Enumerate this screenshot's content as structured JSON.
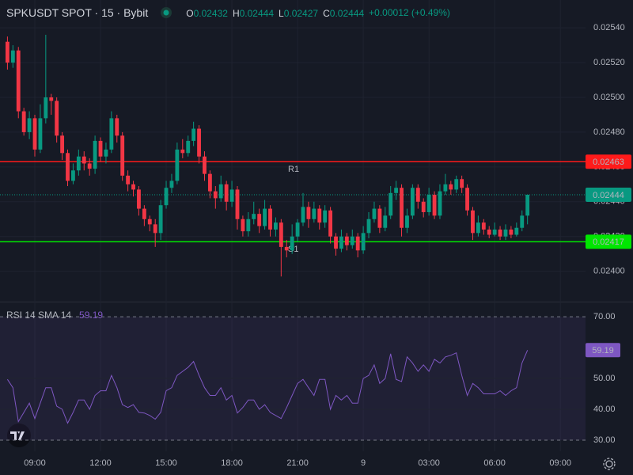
{
  "header": {
    "title": "SPKUSDT SPOT · 15 · Bybit",
    "ohlc": [
      {
        "label": "O",
        "value": 0.02432
      },
      {
        "label": "H",
        "value": 0.02444
      },
      {
        "label": "L",
        "value": 0.02427
      },
      {
        "label": "C",
        "value": 0.02444
      }
    ],
    "change": "+0.00012 (+0.49%)"
  },
  "chart_data": [
    {
      "type": "candlestick",
      "up_color": "#089981",
      "down_color": "#f23645",
      "grid": true,
      "x": [
        7.75,
        8,
        8.25,
        8.5,
        8.75,
        9,
        9.25,
        9.5,
        9.75,
        10,
        10.25,
        10.5,
        10.75,
        11,
        11.25,
        11.5,
        11.75,
        12,
        12.25,
        12.5,
        12.75,
        13,
        13.25,
        13.5,
        13.75,
        14,
        14.25,
        14.5,
        14.75,
        15,
        15.25,
        15.5,
        15.75,
        16,
        16.25,
        16.5,
        16.75,
        17,
        17.25,
        17.5,
        17.75,
        18,
        18.25,
        18.5,
        18.75,
        19,
        19.25,
        19.5,
        19.75,
        20,
        20.25,
        20.5,
        20.75,
        21,
        21.25,
        21.5,
        21.75,
        22,
        22.25,
        22.5,
        22.75,
        23,
        23.25,
        23.5,
        23.75,
        24,
        24.25,
        24.5,
        24.75,
        25,
        25.25,
        25.5,
        25.75,
        26,
        26.25,
        26.5,
        26.75,
        27,
        27.25,
        27.5,
        27.75,
        28,
        28.25,
        28.5,
        28.75,
        29,
        29.25,
        29.5,
        29.75,
        30,
        30.25,
        30.5,
        30.75,
        31,
        31.25,
        31.5
      ],
      "open": [
        0.02532,
        0.0252,
        0.02527,
        0.02492,
        0.0248,
        0.02488,
        0.0247,
        0.02488,
        0.025,
        0.02498,
        0.02478,
        0.02468,
        0.02452,
        0.02458,
        0.02466,
        0.02462,
        0.02459,
        0.02475,
        0.02466,
        0.0247,
        0.02488,
        0.02478,
        0.02455,
        0.0245,
        0.02447,
        0.02436,
        0.0243,
        0.02427,
        0.02422,
        0.02438,
        0.02448,
        0.02452,
        0.0247,
        0.02468,
        0.02475,
        0.02482,
        0.02466,
        0.02456,
        0.02446,
        0.02442,
        0.0245,
        0.0244,
        0.02447,
        0.0243,
        0.02423,
        0.0243,
        0.02433,
        0.02426,
        0.02436,
        0.02424,
        0.02428,
        0.02414,
        0.02412,
        0.0242,
        0.02428,
        0.02437,
        0.0243,
        0.02436,
        0.02428,
        0.02435,
        0.0242,
        0.02413,
        0.0242,
        0.02415,
        0.0242,
        0.02412,
        0.02422,
        0.0243,
        0.02436,
        0.02425,
        0.02432,
        0.02445,
        0.02448,
        0.02425,
        0.02432,
        0.02448,
        0.0244,
        0.02434,
        0.02444,
        0.02432,
        0.02446,
        0.0245,
        0.02447,
        0.02453,
        0.02448,
        0.02435,
        0.02422,
        0.02428,
        0.02424,
        0.02421,
        0.02424,
        0.0242,
        0.02424,
        0.02421,
        0.02425,
        0.02432
      ],
      "high": [
        0.02535,
        0.0253,
        0.02529,
        0.02494,
        0.02492,
        0.0249,
        0.02496,
        0.02536,
        0.02502,
        0.025,
        0.0248,
        0.0247,
        0.02462,
        0.0247,
        0.02469,
        0.02465,
        0.02478,
        0.02477,
        0.02474,
        0.02492,
        0.0249,
        0.0248,
        0.02458,
        0.02452,
        0.02449,
        0.02438,
        0.02432,
        0.0243,
        0.02441,
        0.02452,
        0.02456,
        0.02474,
        0.02476,
        0.02478,
        0.02486,
        0.02484,
        0.02469,
        0.02458,
        0.02449,
        0.02455,
        0.02452,
        0.02452,
        0.02449,
        0.02432,
        0.02434,
        0.0244,
        0.02436,
        0.02441,
        0.02438,
        0.02431,
        0.0243,
        0.02418,
        0.02427,
        0.0243,
        0.02445,
        0.0244,
        0.0244,
        0.02438,
        0.02438,
        0.02437,
        0.02422,
        0.02424,
        0.02422,
        0.02424,
        0.02422,
        0.02426,
        0.02434,
        0.0244,
        0.02438,
        0.02437,
        0.02449,
        0.02452,
        0.0245,
        0.02436,
        0.0245,
        0.0245,
        0.02442,
        0.02448,
        0.02446,
        0.0245,
        0.02456,
        0.02452,
        0.02455,
        0.02455,
        0.0245,
        0.02437,
        0.02432,
        0.0243,
        0.02426,
        0.02428,
        0.02426,
        0.02427,
        0.02426,
        0.02428,
        0.02435,
        0.02444
      ],
      "low": [
        0.02516,
        0.02517,
        0.02488,
        0.02478,
        0.02476,
        0.02466,
        0.02468,
        0.02485,
        0.0249,
        0.02474,
        0.02464,
        0.02449,
        0.0245,
        0.02455,
        0.02458,
        0.02455,
        0.02456,
        0.02463,
        0.02462,
        0.02468,
        0.02474,
        0.02452,
        0.02446,
        0.02443,
        0.02432,
        0.02426,
        0.02423,
        0.02414,
        0.02418,
        0.02436,
        0.02445,
        0.0245,
        0.02465,
        0.02466,
        0.02472,
        0.02462,
        0.02452,
        0.02442,
        0.02436,
        0.0244,
        0.02435,
        0.02437,
        0.02424,
        0.0242,
        0.0242,
        0.02427,
        0.02422,
        0.02424,
        0.0242,
        0.0242,
        0.02397,
        0.02408,
        0.0241,
        0.02417,
        0.02426,
        0.02425,
        0.02428,
        0.02424,
        0.02425,
        0.02416,
        0.02409,
        0.02411,
        0.02412,
        0.02413,
        0.02408,
        0.0241,
        0.02419,
        0.02428,
        0.02422,
        0.02423,
        0.0243,
        0.02441,
        0.0242,
        0.02422,
        0.0243,
        0.02436,
        0.02431,
        0.02432,
        0.0243,
        0.0243,
        0.02444,
        0.02444,
        0.02445,
        0.02445,
        0.02432,
        0.02418,
        0.0242,
        0.02421,
        0.02419,
        0.0242,
        0.02418,
        0.02418,
        0.02419,
        0.0242,
        0.02423,
        0.02427
      ],
      "close": [
        0.0252,
        0.02527,
        0.02492,
        0.0248,
        0.02488,
        0.0247,
        0.02488,
        0.025,
        0.02498,
        0.02478,
        0.02468,
        0.02452,
        0.02458,
        0.02466,
        0.02462,
        0.02459,
        0.02475,
        0.02466,
        0.0247,
        0.02488,
        0.02478,
        0.02455,
        0.0245,
        0.02447,
        0.02436,
        0.0243,
        0.02427,
        0.02422,
        0.02438,
        0.02448,
        0.02452,
        0.0247,
        0.02468,
        0.02475,
        0.02482,
        0.02466,
        0.02456,
        0.02446,
        0.02442,
        0.0245,
        0.0244,
        0.02447,
        0.0243,
        0.02423,
        0.0243,
        0.02433,
        0.02426,
        0.02436,
        0.02424,
        0.02428,
        0.02414,
        0.02412,
        0.0242,
        0.02428,
        0.02437,
        0.0243,
        0.02436,
        0.02428,
        0.02435,
        0.0242,
        0.02413,
        0.0242,
        0.02415,
        0.0242,
        0.02412,
        0.02422,
        0.0243,
        0.02436,
        0.02425,
        0.02432,
        0.02445,
        0.02448,
        0.02425,
        0.02432,
        0.02448,
        0.0244,
        0.02434,
        0.02444,
        0.02432,
        0.02446,
        0.0245,
        0.02447,
        0.02453,
        0.02448,
        0.02435,
        0.02422,
        0.02428,
        0.02424,
        0.02421,
        0.02424,
        0.0242,
        0.02424,
        0.02421,
        0.02425,
        0.02432,
        0.02444
      ],
      "xlim": [
        7.41,
        34.15
      ],
      "ylim": [
        0.02383,
        0.02556
      ],
      "xticks": [
        {
          "value": 9,
          "label": "09:00"
        },
        {
          "value": 12,
          "label": "12:00"
        },
        {
          "value": 15,
          "label": "15:00"
        },
        {
          "value": 18,
          "label": "18:00"
        },
        {
          "value": 21,
          "label": "21:00"
        },
        {
          "value": 24,
          "label": "9"
        },
        {
          "value": 27,
          "label": "03:00"
        },
        {
          "value": 30,
          "label": "06:00"
        },
        {
          "value": 33,
          "label": "09:00"
        }
      ],
      "yticks": [
        {
          "value": 0.0254,
          "label": "0.02540"
        },
        {
          "value": 0.0252,
          "label": "0.02520"
        },
        {
          "value": 0.025,
          "label": "0.02500"
        },
        {
          "value": 0.0248,
          "label": "0.02480"
        },
        {
          "value": 0.0246,
          "label": "0.02460"
        },
        {
          "value": 0.0244,
          "label": "0.02440"
        },
        {
          "value": 0.0242,
          "label": "0.02420"
        },
        {
          "value": 0.024,
          "label": "0.02400"
        }
      ],
      "price_lines": [
        {
          "label": "R1",
          "value": 0.02463,
          "color": "#ff1a1a"
        },
        {
          "label": "S1",
          "value": 0.02417,
          "color": "#00e600"
        }
      ],
      "last_price": 0.02444
    },
    {
      "type": "line",
      "title": "RSI 14 SMA 14",
      "color": "#7e57c2",
      "x": [
        7.75,
        8,
        8.25,
        8.5,
        8.75,
        9,
        9.25,
        9.5,
        9.75,
        10,
        10.25,
        10.5,
        10.75,
        11,
        11.25,
        11.5,
        11.75,
        12,
        12.25,
        12.5,
        12.75,
        13,
        13.25,
        13.5,
        13.75,
        14,
        14.25,
        14.5,
        14.75,
        15,
        15.25,
        15.5,
        15.75,
        16,
        16.25,
        16.5,
        16.75,
        17,
        17.25,
        17.5,
        17.75,
        18,
        18.25,
        18.5,
        18.75,
        19,
        19.25,
        19.5,
        19.75,
        20,
        20.25,
        20.5,
        20.75,
        21,
        21.25,
        21.5,
        21.75,
        22,
        22.25,
        22.5,
        22.75,
        23,
        23.25,
        23.5,
        23.75,
        24,
        24.25,
        24.5,
        24.75,
        25,
        25.25,
        25.5,
        25.75,
        26,
        26.25,
        26.5,
        26.75,
        27,
        27.25,
        27.5,
        27.75,
        28,
        28.25,
        28.5,
        28.75,
        29,
        29.25,
        29.5,
        29.75,
        30,
        30.25,
        30.5,
        30.75,
        31,
        31.25,
        31.5
      ],
      "values": [
        49.7,
        47,
        36,
        39,
        42,
        37,
        42,
        47,
        47,
        41,
        40,
        35.5,
        39,
        43,
        43,
        40,
        44.5,
        46,
        46,
        51,
        47,
        41.5,
        40.6,
        41.5,
        39,
        38.8,
        38,
        36.8,
        39,
        46,
        47,
        51,
        52.3,
        53.6,
        55.5,
        51,
        47,
        44.5,
        44.5,
        47,
        43,
        44.5,
        38.8,
        40.6,
        43,
        43,
        40,
        41.5,
        39,
        38,
        37,
        40.6,
        44.5,
        48.4,
        49.7,
        47,
        44.5,
        49.7,
        49.7,
        40,
        44.5,
        43,
        44.5,
        42,
        42,
        50,
        51,
        54.4,
        48.4,
        50,
        58,
        49.7,
        49,
        57,
        55,
        52.3,
        54.4,
        52.3,
        56.2,
        55,
        57,
        57.5,
        58.3,
        51,
        44.5,
        48.4,
        47,
        45,
        45,
        45,
        46,
        44.5,
        46,
        47,
        55,
        59.19
      ],
      "xlim": [
        7.41,
        34.15
      ],
      "ylim": [
        26.4,
        74.4
      ],
      "yticks": [
        {
          "value": 30,
          "label": "30.00"
        },
        {
          "value": 40,
          "label": "40.00"
        },
        {
          "value": 50,
          "label": "50.00"
        },
        {
          "value": 70,
          "label": "70.00"
        }
      ]
    }
  ]
}
